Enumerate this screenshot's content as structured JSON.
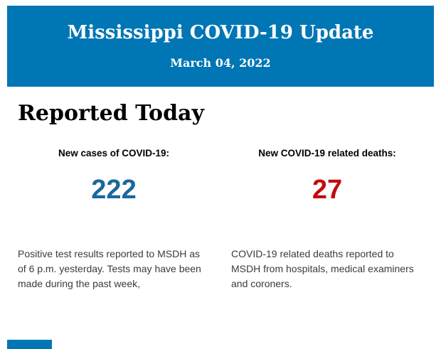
{
  "header": {
    "title": "Mississippi COVID-19 Update",
    "date": "March 04, 2022",
    "background_color": "#0076b4",
    "text_color": "#ffffff"
  },
  "main": {
    "heading": "Reported Today",
    "stats": [
      {
        "label": "New cases of COVID-19:",
        "value": "222",
        "value_color": "#1a689c",
        "description_lines": [
          "Positive test results reported to MSDH as",
          "of 6 p.m. yesterday. Tests may have been",
          "made during the past week,"
        ]
      },
      {
        "label": "New COVID-19 related deaths:",
        "value": "27",
        "value_color": "#c20b0e",
        "description_lines": [
          "COVID-19 related deaths reported to",
          "MSDH from hospitals, medical examiners",
          "and coroners."
        ]
      }
    ]
  },
  "footer": {
    "sliver_color": "#0076b4"
  }
}
